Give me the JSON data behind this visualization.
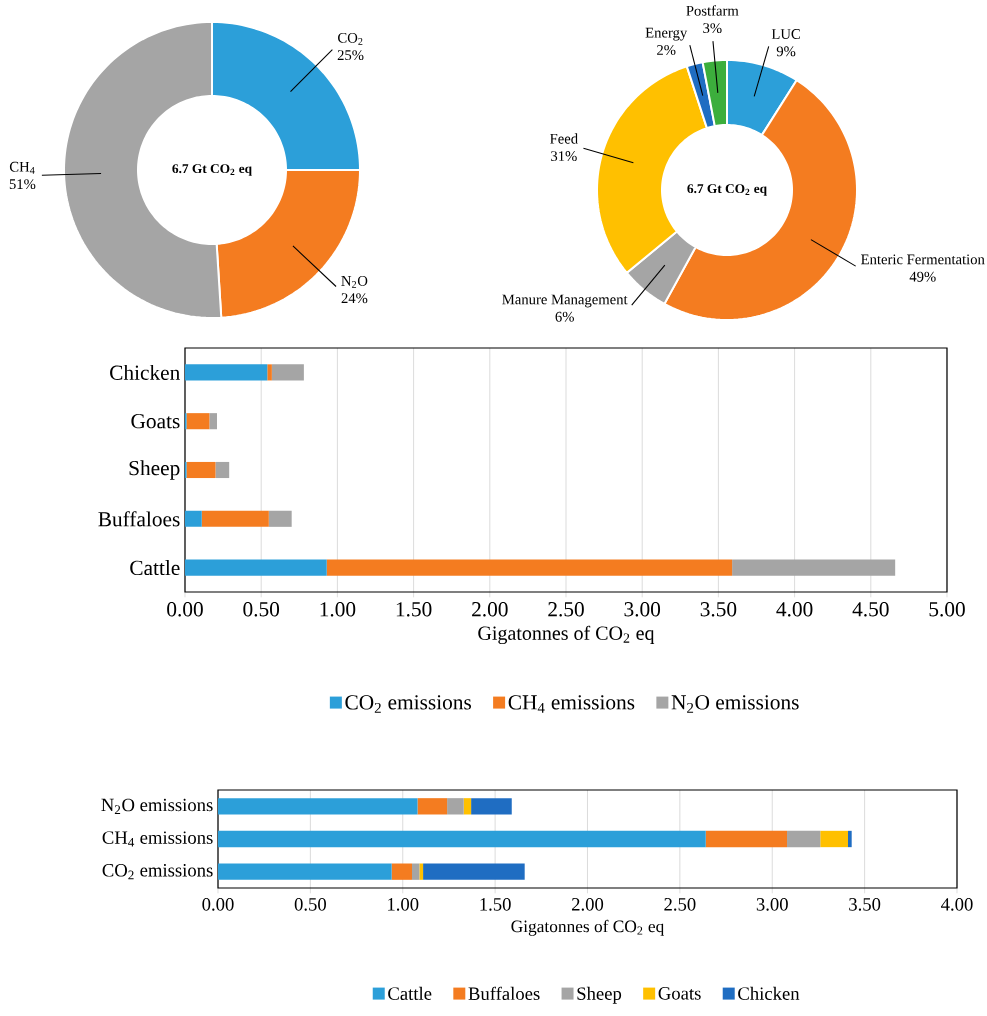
{
  "chart_data": [
    {
      "type": "donut",
      "categories": [
        "CO$_{2}$",
        "N$_{2}$O",
        "CH$_{4}$"
      ],
      "values": [
        25,
        24,
        51
      ],
      "value_labels": [
        "25%",
        "24%",
        "51%"
      ],
      "colors": [
        "#2c9fd9",
        "#f47c20",
        "#a5a5a5"
      ],
      "annotations": [
        "6.7 Gt CO$_{2}$ eq"
      ]
    },
    {
      "type": "donut",
      "categories": [
        "LUC",
        "Enteric Fermentation",
        "Manure Management",
        "Feed",
        "Energy",
        "Postfarm"
      ],
      "values": [
        9,
        49,
        6,
        31,
        2,
        3
      ],
      "value_labels": [
        "9%",
        "49%",
        "6%",
        "31%",
        "2%",
        "3%"
      ],
      "colors": [
        "#2c9fd9",
        "#f47c20",
        "#a5a5a5",
        "#ffc000",
        "#1f6dc2",
        "#3cae3c"
      ],
      "annotations": [
        "6.7 Gt CO$_{2}$ eq"
      ]
    },
    {
      "type": "bar",
      "orientation": "horizontal",
      "stacked": true,
      "categories": [
        "Chicken",
        "Goats",
        "Sheep",
        "Buffaloes",
        "Cattle"
      ],
      "xlabel": "Gigatonnes of CO$_{2}$ eq",
      "xlim": [
        0,
        5
      ],
      "xticks": [
        {
          "value": 0,
          "label": "0.00"
        },
        {
          "value": 0.5,
          "label": "0.50"
        },
        {
          "value": 1,
          "label": "1.00"
        },
        {
          "value": 1.5,
          "label": "1.50"
        },
        {
          "value": 2,
          "label": "2.00"
        },
        {
          "value": 2.5,
          "label": "2.50"
        },
        {
          "value": 3,
          "label": "3.00"
        },
        {
          "value": 3.5,
          "label": "3.50"
        },
        {
          "value": 4,
          "label": "4.00"
        },
        {
          "value": 4.5,
          "label": "4.50"
        },
        {
          "value": 5,
          "label": "5.00"
        }
      ],
      "grid": "x",
      "legend": "bottom",
      "series": [
        {
          "name": "CO$_{2}$ emissions",
          "color": "#2c9fd9",
          "values": [
            0.54,
            0.01,
            0.01,
            0.11,
            0.93
          ]
        },
        {
          "name": "CH$_{4}$ emissions",
          "color": "#f47c20",
          "values": [
            0.03,
            0.15,
            0.19,
            0.44,
            2.66
          ]
        },
        {
          "name": "N$_{2}$O emissions",
          "color": "#a5a5a5",
          "values": [
            0.21,
            0.05,
            0.09,
            0.15,
            1.07
          ]
        }
      ]
    },
    {
      "type": "bar",
      "orientation": "horizontal",
      "stacked": true,
      "categories": [
        "N$_{2}$O emissions",
        "CH$_{4}$ emissions",
        "CO$_{2}$ emissions"
      ],
      "xlabel": "Gigatonnes of CO$_{2}$ eq",
      "xlim": [
        0,
        4
      ],
      "xticks": [
        {
          "value": 0,
          "label": "0.00"
        },
        {
          "value": 0.5,
          "label": "0.50"
        },
        {
          "value": 1,
          "label": "1.00"
        },
        {
          "value": 1.5,
          "label": "1.50"
        },
        {
          "value": 2,
          "label": "2.00"
        },
        {
          "value": 2.5,
          "label": "2.50"
        },
        {
          "value": 3,
          "label": "3.00"
        },
        {
          "value": 3.5,
          "label": "3.50"
        },
        {
          "value": 4,
          "label": "4.00"
        }
      ],
      "grid": "x",
      "legend": "bottom",
      "series": [
        {
          "name": "Cattle",
          "color": "#2c9fd9",
          "values": [
            1.08,
            2.64,
            0.94
          ]
        },
        {
          "name": "Buffaloes",
          "color": "#f47c20",
          "values": [
            0.16,
            0.44,
            0.11
          ]
        },
        {
          "name": "Sheep",
          "color": "#a5a5a5",
          "values": [
            0.09,
            0.18,
            0.04
          ]
        },
        {
          "name": "Goats",
          "color": "#ffc000",
          "values": [
            0.04,
            0.15,
            0.02
          ]
        },
        {
          "name": "Chicken",
          "color": "#1f6dc2",
          "values": [
            0.22,
            0.02,
            0.55
          ]
        }
      ]
    }
  ]
}
